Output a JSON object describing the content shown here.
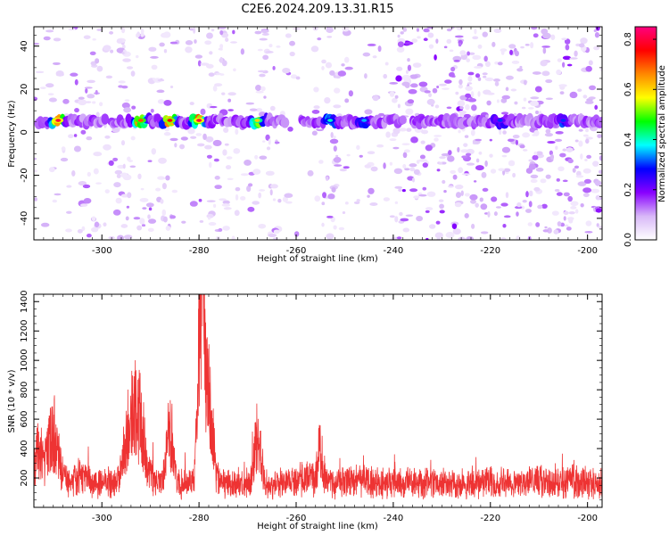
{
  "title": "C2E6.2024.209.13.31.R15",
  "chart_data": [
    {
      "type": "heatmap",
      "xlabel": "Height of straight line (km)",
      "ylabel": "Frequency (Hz)",
      "xlim": [
        -314,
        -197
      ],
      "ylim": [
        -50,
        49
      ],
      "x_ticks": [
        -300,
        -280,
        -260,
        -240,
        -220,
        -200
      ],
      "y_ticks": [
        -40,
        -20,
        0,
        20,
        40
      ],
      "band_frequency_hz": 5,
      "band_segments": [
        [
          -313,
          -299
        ],
        [
          -298,
          -262
        ],
        [
          -259,
          -238
        ],
        [
          -236,
          -197
        ]
      ],
      "band_peaks": [
        {
          "x": -309,
          "amplitude": 0.8
        },
        {
          "x": -292,
          "amplitude": 0.7
        },
        {
          "x": -286,
          "amplitude": 0.75
        },
        {
          "x": -280,
          "amplitude": 0.8
        },
        {
          "x": -268,
          "amplitude": 0.6
        },
        {
          "x": -253,
          "amplitude": 0.4
        },
        {
          "x": -246,
          "amplitude": 0.35
        },
        {
          "x": -218,
          "amplitude": 0.3
        },
        {
          "x": -205,
          "amplitude": 0.3
        }
      ],
      "colorbar": {
        "label": "Normalized spectral amplitude",
        "range": [
          0,
          0.85
        ],
        "ticks": [
          0.0,
          0.2,
          0.4,
          0.6,
          0.8
        ],
        "tick_labels": [
          "0.0",
          "0.2",
          "0.4",
          "0.6",
          "0.8"
        ],
        "colors": [
          "#ffffff",
          "#d8b8f8",
          "#8800ff",
          "#0000ff",
          "#00ffff",
          "#00ff00",
          "#ffff00",
          "#ff8800",
          "#ff0000",
          "#ff0080"
        ]
      }
    },
    {
      "type": "line",
      "xlabel": "Height of straight line (km)",
      "ylabel": "SNR (10 * v/v)",
      "xlim": [
        -314,
        -197
      ],
      "ylim": [
        0,
        1450
      ],
      "x_ticks": [
        -300,
        -280,
        -260,
        -240,
        -220,
        -200
      ],
      "y_ticks": [
        200,
        400,
        600,
        800,
        1000,
        1200,
        1400
      ],
      "color": "#ee3333",
      "baseline": 170,
      "peaks": [
        {
          "x": -313,
          "y": 400,
          "w": 1.2
        },
        {
          "x": -310,
          "y": 520,
          "w": 1.5
        },
        {
          "x": -305,
          "y": 220,
          "w": 2
        },
        {
          "x": -294,
          "y": 600,
          "w": 1.8
        },
        {
          "x": -292,
          "y": 500,
          "w": 1.5
        },
        {
          "x": -286,
          "y": 560,
          "w": 1.0
        },
        {
          "x": -279.5,
          "y": 1400,
          "w": 0.9
        },
        {
          "x": -278,
          "y": 700,
          "w": 1.2
        },
        {
          "x": -268,
          "y": 520,
          "w": 1.0
        },
        {
          "x": -258,
          "y": 220,
          "w": 2
        },
        {
          "x": -255,
          "y": 400,
          "w": 0.8
        },
        {
          "x": -248,
          "y": 200,
          "w": 2
        },
        {
          "x": -238,
          "y": 180,
          "w": 3
        },
        {
          "x": -224,
          "y": 170,
          "w": 2
        },
        {
          "x": -210,
          "y": 200,
          "w": 2
        },
        {
          "x": -202,
          "y": 190,
          "w": 2
        }
      ]
    }
  ]
}
